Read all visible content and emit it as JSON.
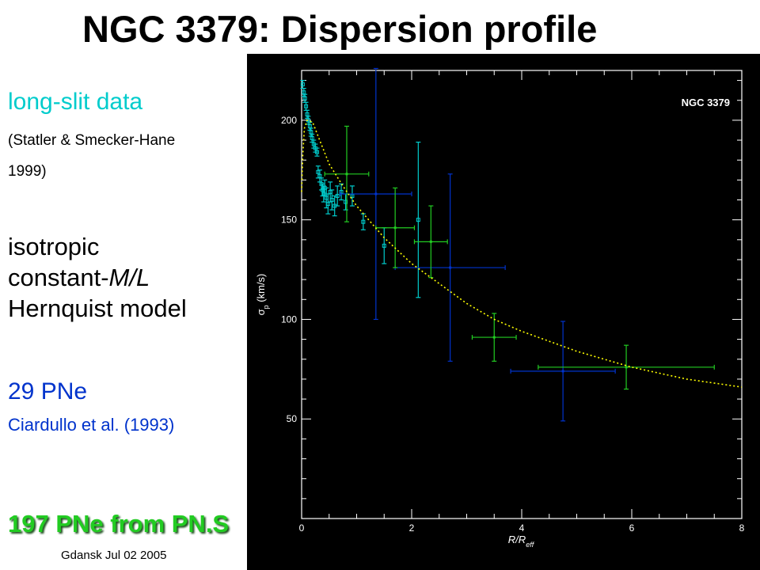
{
  "slide": {
    "title": "NGC 3379: Dispersion profile",
    "longslit_label": "long-slit data",
    "longslit_cite_line1": "(Statler & Smecker-Hane",
    "longslit_cite_line2": "1999)",
    "model_line1": "isotropic",
    "model_line2_pre": "constant-",
    "model_line2_ml": "M/L",
    "model_line3": "Hernquist model",
    "pne_label": "29 PNe",
    "pne_cite": "Ciardullo et al. (1993)",
    "pns_label": "197 PNe from PN.S",
    "footer": "Gdansk Jul 02 2005"
  },
  "colors": {
    "cyan": "#00cccc",
    "blue": "#0033cc",
    "green": "#22cc22",
    "plot_bg": "#000000",
    "model_curve": "#ffff00"
  },
  "chart_data": {
    "type": "scatter",
    "annotation": "NGC 3379",
    "xlabel": "R/Reff",
    "ylabel": "σp (km/s)",
    "xlim": [
      0,
      8
    ],
    "ylim": [
      0,
      225
    ],
    "xticks": [
      0,
      2,
      4,
      6,
      8
    ],
    "yticks": [
      50,
      100,
      150,
      200
    ],
    "grid": false,
    "series": [
      {
        "name": "long-slit data",
        "color": "#00cccc",
        "points": [
          {
            "x": 0.02,
            "y": 218,
            "yerr": 2
          },
          {
            "x": 0.04,
            "y": 214,
            "yerr": 2
          },
          {
            "x": 0.06,
            "y": 211,
            "yerr": 2
          },
          {
            "x": 0.08,
            "y": 207,
            "yerr": 2
          },
          {
            "x": 0.1,
            "y": 203,
            "yerr": 2
          },
          {
            "x": 0.12,
            "y": 200,
            "yerr": 2
          },
          {
            "x": 0.15,
            "y": 197,
            "yerr": 2
          },
          {
            "x": 0.17,
            "y": 194,
            "yerr": 2
          },
          {
            "x": 0.19,
            "y": 191,
            "yerr": 2
          },
          {
            "x": 0.22,
            "y": 188,
            "yerr": 2
          },
          {
            "x": 0.25,
            "y": 186,
            "yerr": 2
          },
          {
            "x": 0.28,
            "y": 184,
            "yerr": 2
          },
          {
            "x": 0.3,
            "y": 174,
            "yerr": 3
          },
          {
            "x": 0.33,
            "y": 172,
            "yerr": 3
          },
          {
            "x": 0.36,
            "y": 168,
            "yerr": 3
          },
          {
            "x": 0.38,
            "y": 165,
            "yerr": 3
          },
          {
            "x": 0.4,
            "y": 163,
            "yerr": 4
          },
          {
            "x": 0.42,
            "y": 166,
            "yerr": 4
          },
          {
            "x": 0.45,
            "y": 161,
            "yerr": 5
          },
          {
            "x": 0.48,
            "y": 158,
            "yerr": 5
          },
          {
            "x": 0.52,
            "y": 164,
            "yerr": 5
          },
          {
            "x": 0.55,
            "y": 160,
            "yerr": 5
          },
          {
            "x": 0.6,
            "y": 157,
            "yerr": 5
          },
          {
            "x": 0.65,
            "y": 162,
            "yerr": 5
          },
          {
            "x": 0.72,
            "y": 164,
            "yerr": 4
          },
          {
            "x": 0.8,
            "y": 159,
            "yerr": 4
          },
          {
            "x": 0.92,
            "y": 162,
            "yerr": 5
          },
          {
            "x": 1.12,
            "y": 149,
            "yerr": 4
          },
          {
            "x": 1.5,
            "y": 137,
            "yerr": 9
          },
          {
            "x": 2.12,
            "y": 150,
            "yerr": 39
          }
        ]
      },
      {
        "name": "29 PNe",
        "color": "#0033cc",
        "points": [
          {
            "x": 1.35,
            "y": 163,
            "xerr": 0.65,
            "yerr": 63
          },
          {
            "x": 2.7,
            "y": 126,
            "xerr": 1.0,
            "yerr": 47
          },
          {
            "x": 4.75,
            "y": 74,
            "xerr": 0.95,
            "yerr": 25
          }
        ]
      },
      {
        "name": "197 PNe from PN.S",
        "color": "#22cc22",
        "points": [
          {
            "x": 0.82,
            "y": 173,
            "xerr": 0.4,
            "yerr": 24
          },
          {
            "x": 1.7,
            "y": 146,
            "xerr": 0.35,
            "yerr": 20
          },
          {
            "x": 2.35,
            "y": 139,
            "xerr": 0.3,
            "yerr": 18
          },
          {
            "x": 3.5,
            "y": 91,
            "xerr": 0.4,
            "yerr": 12
          },
          {
            "x": 5.9,
            "y": 76,
            "xerr": 1.6,
            "yerr": 11
          }
        ]
      },
      {
        "name": "isotropic constant-M/L Hernquist model",
        "color": "#ffff00",
        "style": "dotted",
        "points": [
          {
            "x": 0.0,
            "y": 164
          },
          {
            "x": 0.02,
            "y": 182
          },
          {
            "x": 0.05,
            "y": 196
          },
          {
            "x": 0.1,
            "y": 200
          },
          {
            "x": 0.2,
            "y": 199
          },
          {
            "x": 0.3,
            "y": 192
          },
          {
            "x": 0.5,
            "y": 178
          },
          {
            "x": 0.75,
            "y": 167
          },
          {
            "x": 1.0,
            "y": 157
          },
          {
            "x": 1.5,
            "y": 141
          },
          {
            "x": 2.0,
            "y": 128
          },
          {
            "x": 2.5,
            "y": 118
          },
          {
            "x": 3.0,
            "y": 108
          },
          {
            "x": 3.5,
            "y": 100
          },
          {
            "x": 4.0,
            "y": 94
          },
          {
            "x": 4.5,
            "y": 89
          },
          {
            "x": 5.0,
            "y": 84
          },
          {
            "x": 5.5,
            "y": 80
          },
          {
            "x": 6.0,
            "y": 76
          },
          {
            "x": 6.5,
            "y": 73
          },
          {
            "x": 7.0,
            "y": 70
          },
          {
            "x": 7.5,
            "y": 68
          },
          {
            "x": 8.0,
            "y": 66
          }
        ]
      }
    ]
  }
}
